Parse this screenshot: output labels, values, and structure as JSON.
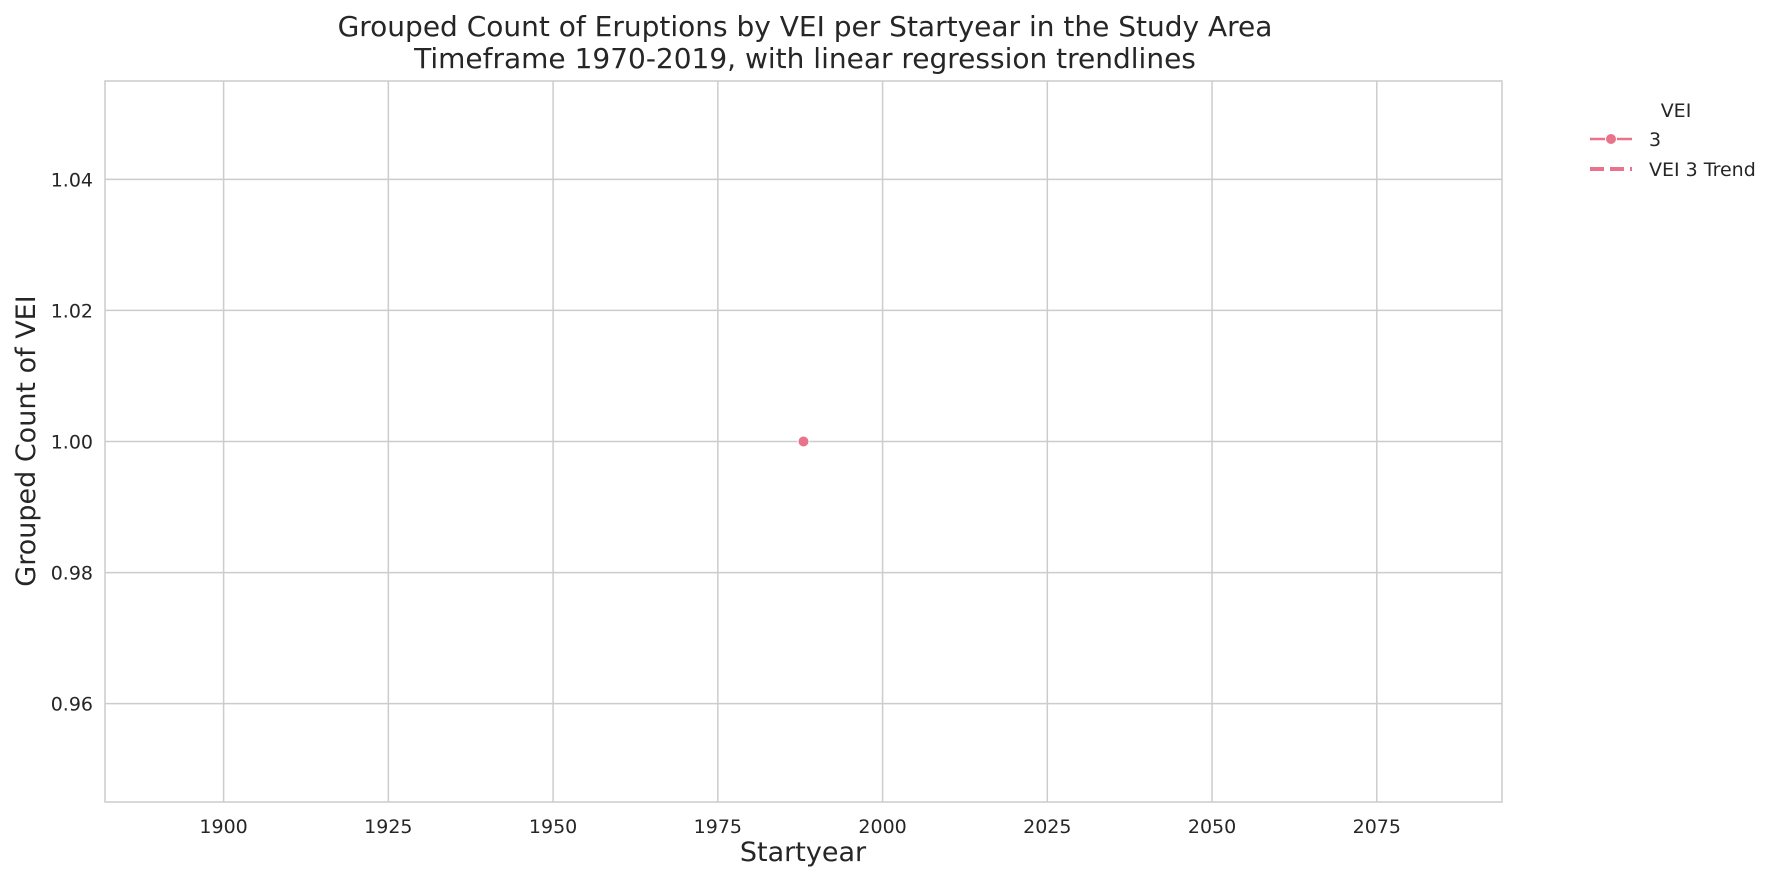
{
  "chart_data": {
    "type": "line",
    "title": {
      "line1": "Grouped Count of Eruptions by VEI per Startyear in the Study Area",
      "line2": "Timeframe 1970-2019, with linear regression trendlines"
    },
    "xlabel": "Startyear",
    "ylabel": "Grouped Count of VEI",
    "xlim": [
      1882,
      2094
    ],
    "ylim": [
      0.945,
      1.055
    ],
    "xticks": [
      1900,
      1925,
      1950,
      1975,
      2000,
      2025,
      2050,
      2075
    ],
    "xtick_labels": [
      "1900",
      "1925",
      "1950",
      "1975",
      "2000",
      "2025",
      "2050",
      "2075"
    ],
    "yticks": [
      0.96,
      0.98,
      1.0,
      1.02,
      1.04
    ],
    "ytick_labels": [
      "0.96",
      "0.98",
      "1.00",
      "1.02",
      "1.04"
    ],
    "grid": true,
    "legend": {
      "title": "VEI",
      "placement": "outside-top-right",
      "entries": [
        "3",
        "VEI 3 Trend"
      ]
    },
    "series": [
      {
        "name": "3",
        "style": "line-marker",
        "x": [
          1988
        ],
        "y": [
          1.0
        ],
        "color": "#e8738a"
      },
      {
        "name": "VEI 3 Trend",
        "style": "dashed",
        "x": [],
        "y": [],
        "color": "#e8738a"
      }
    ]
  }
}
